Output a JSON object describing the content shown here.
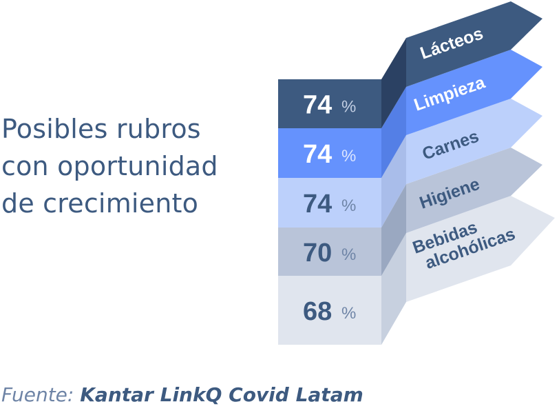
{
  "title_lines": [
    "Posibles rubros",
    "con oportunidad",
    "de crecimiento"
  ],
  "source": {
    "label": "Fuente:",
    "value": "Kantar LinkQ Covid Latam"
  },
  "chart_data": {
    "type": "bar",
    "unit": "%",
    "categories": [
      "Lácteos",
      "Limpieza",
      "Carnes",
      "Higiene",
      "Bebidas alcohólicas"
    ],
    "category_lines": [
      [
        "Lácteos"
      ],
      [
        "Limpieza"
      ],
      [
        "Carnes"
      ],
      [
        "Higiene"
      ],
      [
        "Bebidas",
        "alcohólicas"
      ]
    ],
    "values": [
      74,
      74,
      74,
      70,
      68
    ],
    "colors": {
      "front": [
        "#3d5a80",
        "#6592fd",
        "#bcd0fb",
        "#b9c4d9",
        "#e0e5ee"
      ],
      "fold": [
        "#2b4163",
        "#547fe6",
        "#a9bdea",
        "#9aa8c1",
        "#c7d0df"
      ],
      "ribbon": [
        "#3d5a80",
        "#6592fd",
        "#bcd0fb",
        "#b9c4d9",
        "#e0e5ee"
      ],
      "value_text": [
        "#ffffff",
        "#ffffff",
        "#3d5a80",
        "#3d5a80",
        "#3d5a80"
      ],
      "label_text": [
        "#ffffff",
        "#ffffff",
        "#3d5a80",
        "#3d5a80",
        "#3d5a80"
      ],
      "unit_text": [
        "#c3cfe3",
        "#dce6ff",
        "#6e84a6",
        "#6e84a6",
        "#6e84a6"
      ]
    }
  }
}
